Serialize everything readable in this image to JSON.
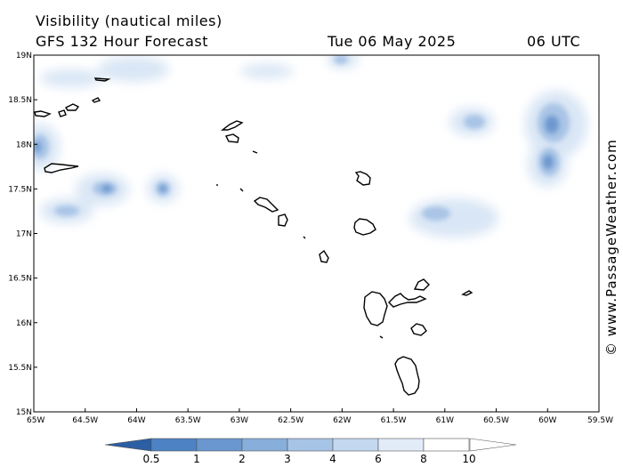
{
  "header": {
    "line1": "Visibility (nautical miles)",
    "line2": "GFS 132 Hour Forecast",
    "date": "Tue 06 May 2025",
    "time": "06 UTC"
  },
  "credit": "© www.PassageWeather.com",
  "map": {
    "lon_range": [
      -65,
      -59.5
    ],
    "lat_range": [
      15,
      19
    ],
    "lat_ticks": [
      {
        "value": 19,
        "label": "19N"
      },
      {
        "value": 18.5,
        "label": "18.5N"
      },
      {
        "value": 18,
        "label": "18N"
      },
      {
        "value": 17.5,
        "label": "17.5N"
      },
      {
        "value": 17,
        "label": "17N"
      },
      {
        "value": 16.5,
        "label": "16.5N"
      },
      {
        "value": 16,
        "label": "16N"
      },
      {
        "value": 15.5,
        "label": "15.5N"
      },
      {
        "value": 15,
        "label": "15N"
      }
    ],
    "lon_ticks": [
      {
        "value": -65,
        "label": "65W"
      },
      {
        "value": -64.5,
        "label": "64.5W"
      },
      {
        "value": -64,
        "label": "64W"
      },
      {
        "value": -63.5,
        "label": "63.5W"
      },
      {
        "value": -63,
        "label": "63W"
      },
      {
        "value": -62.5,
        "label": "62.5W"
      },
      {
        "value": -62,
        "label": "62W"
      },
      {
        "value": -61.5,
        "label": "61.5W"
      },
      {
        "value": -61,
        "label": "61W"
      },
      {
        "value": -60.5,
        "label": "60.5W"
      },
      {
        "value": -60,
        "label": "60W"
      },
      {
        "value": -59.5,
        "label": "59.5W"
      }
    ]
  },
  "colorbar": {
    "labels": [
      "0.5",
      "1",
      "2",
      "3",
      "4",
      "6",
      "8",
      "10"
    ],
    "colors": [
      "#3a6fb5",
      "#4d82c4",
      "#6a97cf",
      "#88aedb",
      "#a6c4e6",
      "#c4d8ef",
      "#e2ecf8",
      "#ffffff"
    ]
  }
}
